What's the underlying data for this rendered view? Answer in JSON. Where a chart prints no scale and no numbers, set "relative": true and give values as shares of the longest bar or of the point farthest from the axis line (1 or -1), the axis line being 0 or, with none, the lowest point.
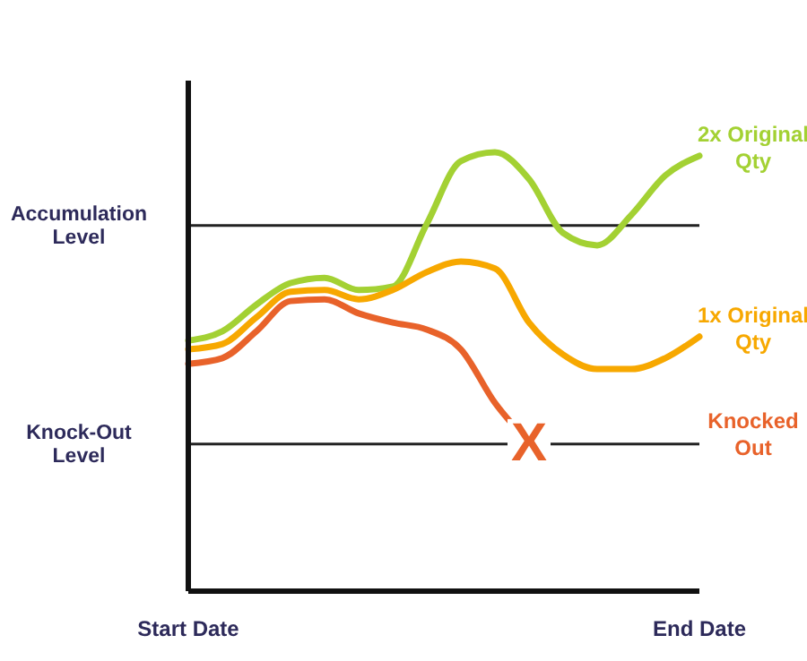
{
  "chart_data": {
    "type": "line",
    "relative": true,
    "grid": false,
    "categories": [
      "Start Date",
      null,
      null,
      null,
      null,
      null,
      null,
      null,
      null,
      null,
      null,
      null,
      null,
      null,
      null,
      "End Date"
    ],
    "series": [
      {
        "name": "2x Original Qty",
        "color": "#a3d133",
        "values": [
          0.571,
          0.592,
          0.653,
          0.702,
          0.714,
          0.686,
          0.694,
          0.837,
          0.98,
          1,
          0.939,
          0.816,
          0.788,
          0.857,
          0.947,
          0.992
        ]
      },
      {
        "name": "1x Original Qty",
        "color": "#f7a800",
        "values": [
          0.551,
          0.563,
          0.624,
          0.682,
          0.686,
          0.665,
          0.686,
          0.727,
          0.751,
          0.735,
          0.612,
          0.539,
          0.506,
          0.506,
          0.531,
          0.58
        ]
      },
      {
        "name": "Knocked Out",
        "color": "#e8622a",
        "values": [
          0.518,
          0.531,
          0.592,
          0.661,
          0.665,
          0.633,
          0.612,
          0.596,
          0.551,
          0.429,
          0.339,
          null,
          null,
          null,
          null,
          null
        ]
      }
    ],
    "ref_lines": [
      {
        "axis": "y",
        "value": 0.833,
        "label": "Accumulation Level",
        "color": "#222222"
      },
      {
        "axis": "y",
        "value": 0.335,
        "label": "Knock-Out Level",
        "color": "#222222"
      }
    ],
    "annotations": [
      {
        "text": "X",
        "y": 0.339
      }
    ]
  }
}
